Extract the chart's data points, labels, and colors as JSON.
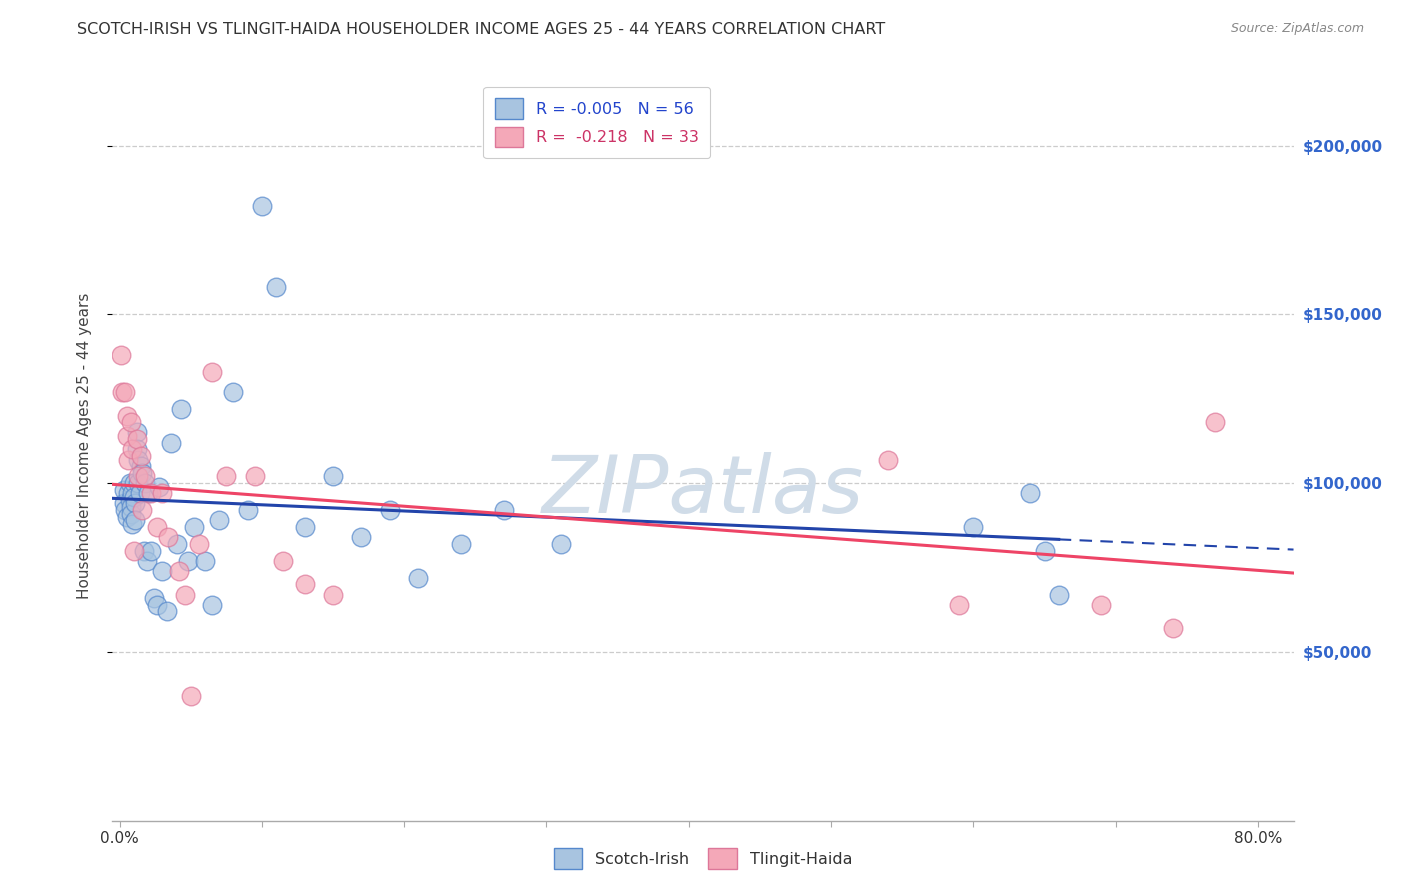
{
  "title": "SCOTCH-IRISH VS TLINGIT-HAIDA HOUSEHOLDER INCOME AGES 25 - 44 YEARS CORRELATION CHART",
  "source": "Source: ZipAtlas.com",
  "ylabel": "Householder Income Ages 25 - 44 years",
  "xlabel_ticks": [
    "0.0%",
    "",
    "",
    "",
    "",
    "",
    "",
    "",
    "80.0%"
  ],
  "xlabel_vals": [
    0.0,
    0.1,
    0.2,
    0.3,
    0.4,
    0.5,
    0.6,
    0.7,
    0.8
  ],
  "ytick_labels": [
    "$50,000",
    "$100,000",
    "$150,000",
    "$200,000"
  ],
  "ytick_vals": [
    50000,
    100000,
    150000,
    200000
  ],
  "ylim": [
    0,
    222000
  ],
  "xlim": [
    -0.005,
    0.825
  ],
  "legend_blue_label": "R = -0.005   N = 56",
  "legend_pink_label": "R =  -0.218   N = 33",
  "blue_scatter_color": "#a8c4e0",
  "pink_scatter_color": "#f4a8b8",
  "blue_edge_color": "#5588cc",
  "pink_edge_color": "#dd7799",
  "blue_line_color": "#2244aa",
  "pink_line_color": "#ee4466",
  "watermark_color": "#d0dce8",
  "scotch_irish_x": [
    0.003,
    0.003,
    0.004,
    0.005,
    0.006,
    0.007,
    0.007,
    0.008,
    0.008,
    0.009,
    0.009,
    0.01,
    0.01,
    0.011,
    0.011,
    0.012,
    0.012,
    0.013,
    0.013,
    0.014,
    0.015,
    0.016,
    0.017,
    0.018,
    0.019,
    0.02,
    0.022,
    0.024,
    0.026,
    0.028,
    0.03,
    0.033,
    0.036,
    0.04,
    0.043,
    0.048,
    0.052,
    0.06,
    0.065,
    0.07,
    0.08,
    0.09,
    0.1,
    0.11,
    0.13,
    0.15,
    0.17,
    0.19,
    0.21,
    0.24,
    0.27,
    0.31,
    0.6,
    0.64,
    0.65,
    0.66
  ],
  "scotch_irish_y": [
    98000,
    94000,
    92000,
    90000,
    97000,
    100000,
    95000,
    93000,
    91000,
    97000,
    88000,
    100000,
    96000,
    94000,
    89000,
    115000,
    110000,
    107000,
    100000,
    97000,
    105000,
    103000,
    80000,
    100000,
    77000,
    97000,
    80000,
    66000,
    64000,
    99000,
    74000,
    62000,
    112000,
    82000,
    122000,
    77000,
    87000,
    77000,
    64000,
    89000,
    127000,
    92000,
    182000,
    158000,
    87000,
    102000,
    84000,
    92000,
    72000,
    82000,
    92000,
    82000,
    87000,
    97000,
    80000,
    67000
  ],
  "tlingit_haida_x": [
    0.001,
    0.002,
    0.004,
    0.005,
    0.005,
    0.006,
    0.008,
    0.009,
    0.01,
    0.012,
    0.013,
    0.015,
    0.016,
    0.018,
    0.022,
    0.026,
    0.03,
    0.034,
    0.042,
    0.046,
    0.05,
    0.056,
    0.065,
    0.075,
    0.095,
    0.115,
    0.13,
    0.15,
    0.54,
    0.59,
    0.69,
    0.74,
    0.77
  ],
  "tlingit_haida_y": [
    138000,
    127000,
    127000,
    120000,
    114000,
    107000,
    118000,
    110000,
    80000,
    113000,
    102000,
    108000,
    92000,
    102000,
    97000,
    87000,
    97000,
    84000,
    74000,
    67000,
    37000,
    82000,
    133000,
    102000,
    102000,
    77000,
    70000,
    67000,
    107000,
    64000,
    64000,
    57000,
    118000
  ]
}
